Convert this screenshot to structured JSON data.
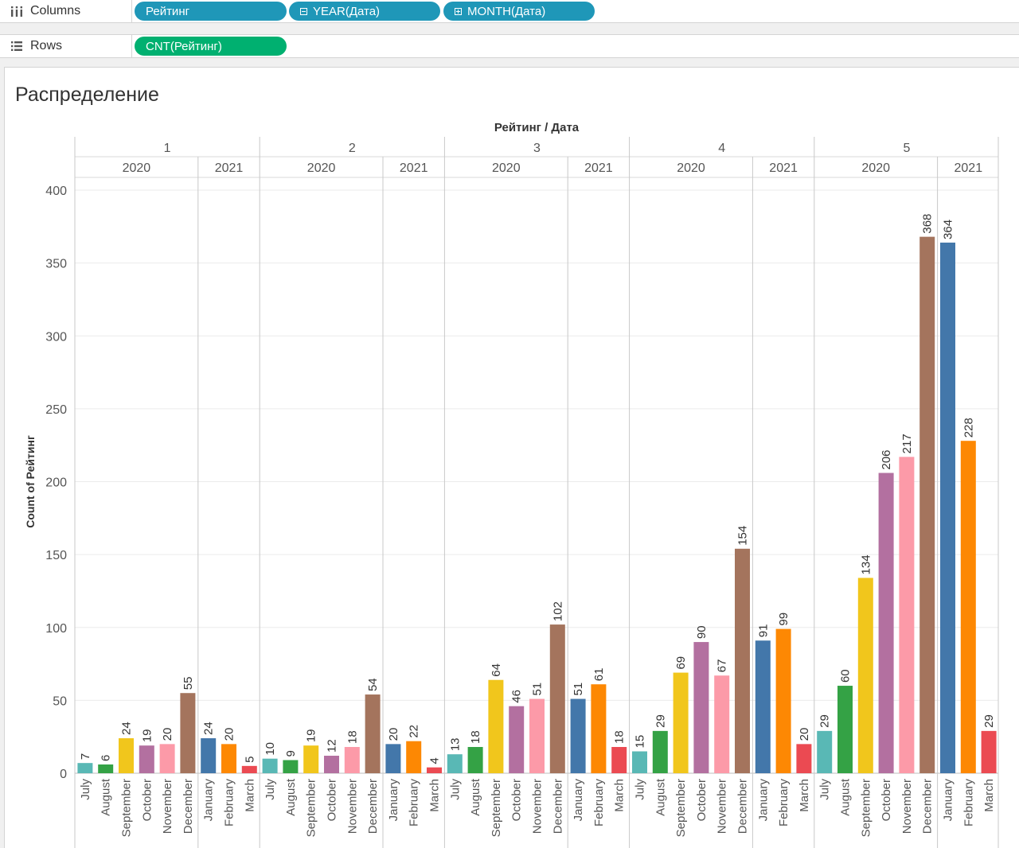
{
  "shelves": {
    "columns": {
      "label": "Columns",
      "pills": [
        {
          "text": "Рейтинг",
          "toggle": ""
        },
        {
          "text": "YEAR(Дата)",
          "toggle": "minus"
        },
        {
          "text": "MONTH(Дата)",
          "toggle": "plus"
        }
      ]
    },
    "rows": {
      "label": "Rows",
      "pills": [
        {
          "text": "CNT(Рейтинг)",
          "toggle": ""
        }
      ]
    }
  },
  "sheet": {
    "title": "Распределение"
  },
  "chart_data": {
    "type": "bar",
    "title": "Распределение",
    "header": "Рейтинг / Дата",
    "ylabel": "Count of Рейтинг",
    "ylim": [
      0,
      400
    ],
    "yticks": [
      0,
      50,
      100,
      150,
      200,
      250,
      300,
      350,
      400
    ],
    "grid": true,
    "data_labels": true,
    "month_colors": {
      "July": "#59b8b5",
      "August": "#34a245",
      "September": "#f1c61c",
      "October": "#b370a0",
      "November": "#fc9aa8",
      "December": "#a4745d",
      "January": "#4377aa",
      "February": "#fd8803",
      "March": "#eb4a52"
    },
    "groups": [
      {
        "rating": "1",
        "years": [
          {
            "year": "2020",
            "months": [
              "July",
              "August",
              "September",
              "October",
              "November",
              "December"
            ],
            "values": [
              7,
              6,
              24,
              19,
              20,
              55
            ]
          },
          {
            "year": "2021",
            "months": [
              "January",
              "February",
              "March"
            ],
            "values": [
              24,
              20,
              5
            ]
          }
        ]
      },
      {
        "rating": "2",
        "years": [
          {
            "year": "2020",
            "months": [
              "July",
              "August",
              "September",
              "October",
              "November",
              "December"
            ],
            "values": [
              10,
              9,
              19,
              12,
              18,
              54
            ]
          },
          {
            "year": "2021",
            "months": [
              "January",
              "February",
              "March"
            ],
            "values": [
              20,
              22,
              4
            ]
          }
        ]
      },
      {
        "rating": "3",
        "years": [
          {
            "year": "2020",
            "months": [
              "July",
              "August",
              "September",
              "October",
              "November",
              "December"
            ],
            "values": [
              13,
              18,
              64,
              46,
              51,
              102
            ]
          },
          {
            "year": "2021",
            "months": [
              "January",
              "February",
              "March"
            ],
            "values": [
              51,
              61,
              18
            ]
          }
        ]
      },
      {
        "rating": "4",
        "years": [
          {
            "year": "2020",
            "months": [
              "July",
              "August",
              "September",
              "October",
              "November",
              "December"
            ],
            "values": [
              15,
              29,
              69,
              90,
              67,
              154
            ]
          },
          {
            "year": "2021",
            "months": [
              "January",
              "February",
              "March"
            ],
            "values": [
              91,
              99,
              20
            ]
          }
        ]
      },
      {
        "rating": "5",
        "years": [
          {
            "year": "2020",
            "months": [
              "July",
              "August",
              "September",
              "October",
              "November",
              "December"
            ],
            "values": [
              29,
              60,
              134,
              206,
              217,
              368
            ]
          },
          {
            "year": "2021",
            "months": [
              "January",
              "February",
              "March"
            ],
            "values": [
              364,
              228,
              29
            ]
          }
        ]
      }
    ]
  }
}
